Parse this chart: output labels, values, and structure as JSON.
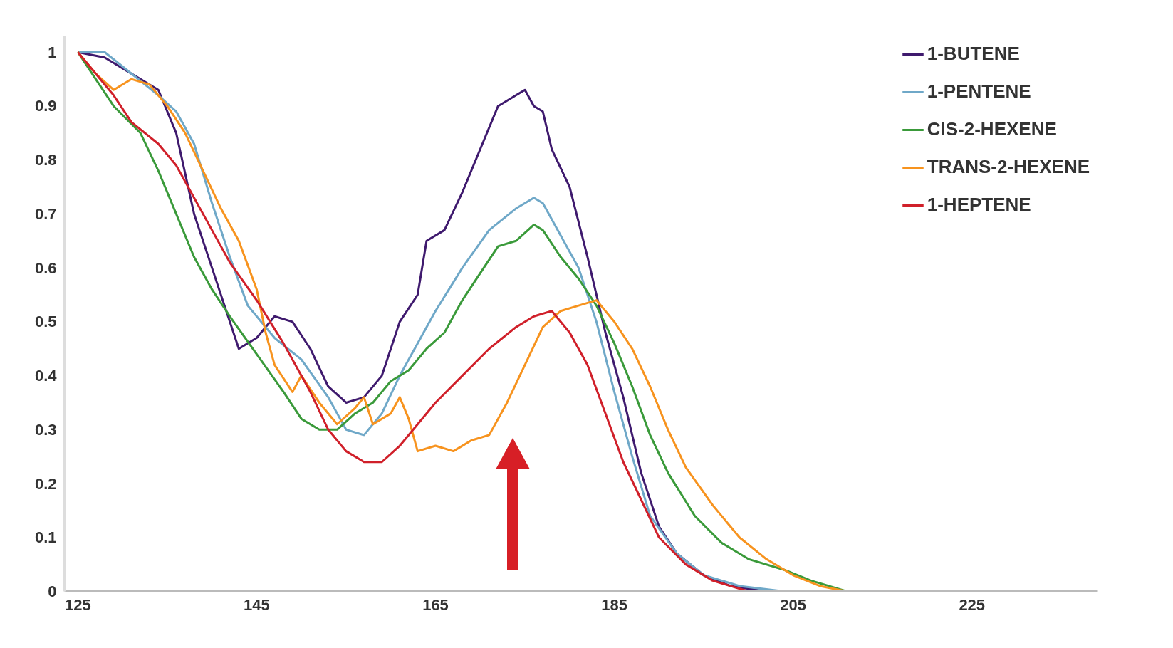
{
  "chart_data": {
    "type": "line",
    "xlim": [
      123.5,
      239
    ],
    "ylim": [
      0,
      1.03
    ],
    "xticks": [
      125,
      145,
      165,
      185,
      205,
      225
    ],
    "yticks": [
      0,
      0.1,
      0.2,
      0.3,
      0.4,
      0.5,
      0.6,
      0.7,
      0.8,
      0.9,
      1
    ],
    "grid": false,
    "legend": "top right",
    "line_style": "solid",
    "marker": "none",
    "series": [
      {
        "name": "1-BUTENE",
        "color": "#3f1a6e",
        "x": [
          125,
          128,
          130,
          132,
          134,
          136,
          138,
          140,
          142,
          143,
          145,
          147,
          149,
          151,
          153,
          155,
          157,
          159,
          161,
          163,
          164,
          166,
          168,
          170,
          172,
          174,
          175,
          176,
          177,
          178,
          180,
          182,
          184,
          186,
          188,
          190,
          192,
          195,
          198,
          202,
          238
        ],
        "values": [
          1.0,
          0.99,
          0.97,
          0.95,
          0.93,
          0.85,
          0.7,
          0.6,
          0.5,
          0.45,
          0.47,
          0.51,
          0.5,
          0.45,
          0.38,
          0.35,
          0.36,
          0.4,
          0.5,
          0.55,
          0.65,
          0.67,
          0.74,
          0.82,
          0.9,
          0.92,
          0.93,
          0.9,
          0.89,
          0.82,
          0.75,
          0.62,
          0.48,
          0.36,
          0.22,
          0.12,
          0.07,
          0.03,
          0.01,
          0,
          0
        ]
      },
      {
        "name": "1-PENTENE",
        "color": "#6fa8c8",
        "x": [
          125,
          128,
          131,
          134,
          136,
          138,
          140,
          142,
          144,
          147,
          150,
          153,
          155,
          157,
          159,
          161,
          163,
          165,
          168,
          171,
          174,
          176,
          177,
          179,
          181,
          183,
          185,
          187,
          189,
          192,
          195,
          199,
          204,
          238
        ],
        "values": [
          1,
          1.0,
          0.96,
          0.92,
          0.89,
          0.83,
          0.72,
          0.62,
          0.53,
          0.47,
          0.43,
          0.36,
          0.3,
          0.29,
          0.33,
          0.4,
          0.46,
          0.52,
          0.6,
          0.67,
          0.71,
          0.73,
          0.72,
          0.66,
          0.6,
          0.5,
          0.37,
          0.25,
          0.14,
          0.07,
          0.03,
          0.01,
          0,
          0
        ]
      },
      {
        "name": "CIS-2-HEXENE",
        "color": "#3a9a3a",
        "x": [
          125,
          127,
          129,
          132,
          134,
          136,
          138,
          140,
          142,
          145,
          148,
          150,
          152,
          154,
          156,
          158,
          160,
          162,
          164,
          166,
          168,
          170,
          172,
          174,
          176,
          177,
          179,
          181,
          183,
          185,
          187,
          189,
          191,
          194,
          197,
          200,
          204,
          207,
          211,
          238
        ],
        "values": [
          1,
          0.95,
          0.9,
          0.85,
          0.78,
          0.7,
          0.62,
          0.56,
          0.51,
          0.44,
          0.37,
          0.32,
          0.3,
          0.3,
          0.33,
          0.35,
          0.39,
          0.41,
          0.45,
          0.48,
          0.54,
          0.59,
          0.64,
          0.65,
          0.68,
          0.67,
          0.62,
          0.58,
          0.53,
          0.46,
          0.38,
          0.29,
          0.22,
          0.14,
          0.09,
          0.06,
          0.04,
          0.02,
          0,
          0
        ]
      },
      {
        "name": "TRANS-2-HEXENE",
        "color": "#f7931e",
        "x": [
          125,
          127,
          129,
          131,
          133,
          135,
          137,
          139,
          141,
          143,
          145,
          146,
          147,
          149,
          150,
          152,
          154,
          156,
          157,
          158,
          160,
          161,
          162,
          163,
          165,
          167,
          169,
          171,
          173,
          175,
          177,
          179,
          181,
          183,
          185,
          187,
          189,
          191,
          193,
          196,
          199,
          202,
          205,
          208,
          211,
          238
        ],
        "values": [
          1,
          0.96,
          0.93,
          0.95,
          0.94,
          0.9,
          0.85,
          0.78,
          0.71,
          0.65,
          0.56,
          0.48,
          0.42,
          0.37,
          0.4,
          0.35,
          0.31,
          0.34,
          0.36,
          0.31,
          0.33,
          0.36,
          0.32,
          0.26,
          0.27,
          0.26,
          0.28,
          0.29,
          0.35,
          0.42,
          0.49,
          0.52,
          0.53,
          0.54,
          0.5,
          0.45,
          0.38,
          0.3,
          0.23,
          0.16,
          0.1,
          0.06,
          0.03,
          0.01,
          0,
          0
        ]
      },
      {
        "name": "1-HEPTENE",
        "color": "#d0202a",
        "x": [
          125,
          127,
          129,
          131,
          134,
          136,
          138,
          140,
          142,
          145,
          148,
          151,
          153,
          155,
          157,
          159,
          161,
          163,
          165,
          168,
          171,
          174,
          176,
          178,
          180,
          182,
          184,
          186,
          188,
          190,
          193,
          196,
          200,
          238
        ],
        "values": [
          1,
          0.96,
          0.92,
          0.87,
          0.83,
          0.79,
          0.73,
          0.67,
          0.61,
          0.54,
          0.46,
          0.37,
          0.3,
          0.26,
          0.24,
          0.24,
          0.27,
          0.31,
          0.35,
          0.4,
          0.45,
          0.49,
          0.51,
          0.52,
          0.48,
          0.42,
          0.33,
          0.24,
          0.17,
          0.1,
          0.05,
          0.02,
          0,
          0
        ]
      }
    ]
  }
}
